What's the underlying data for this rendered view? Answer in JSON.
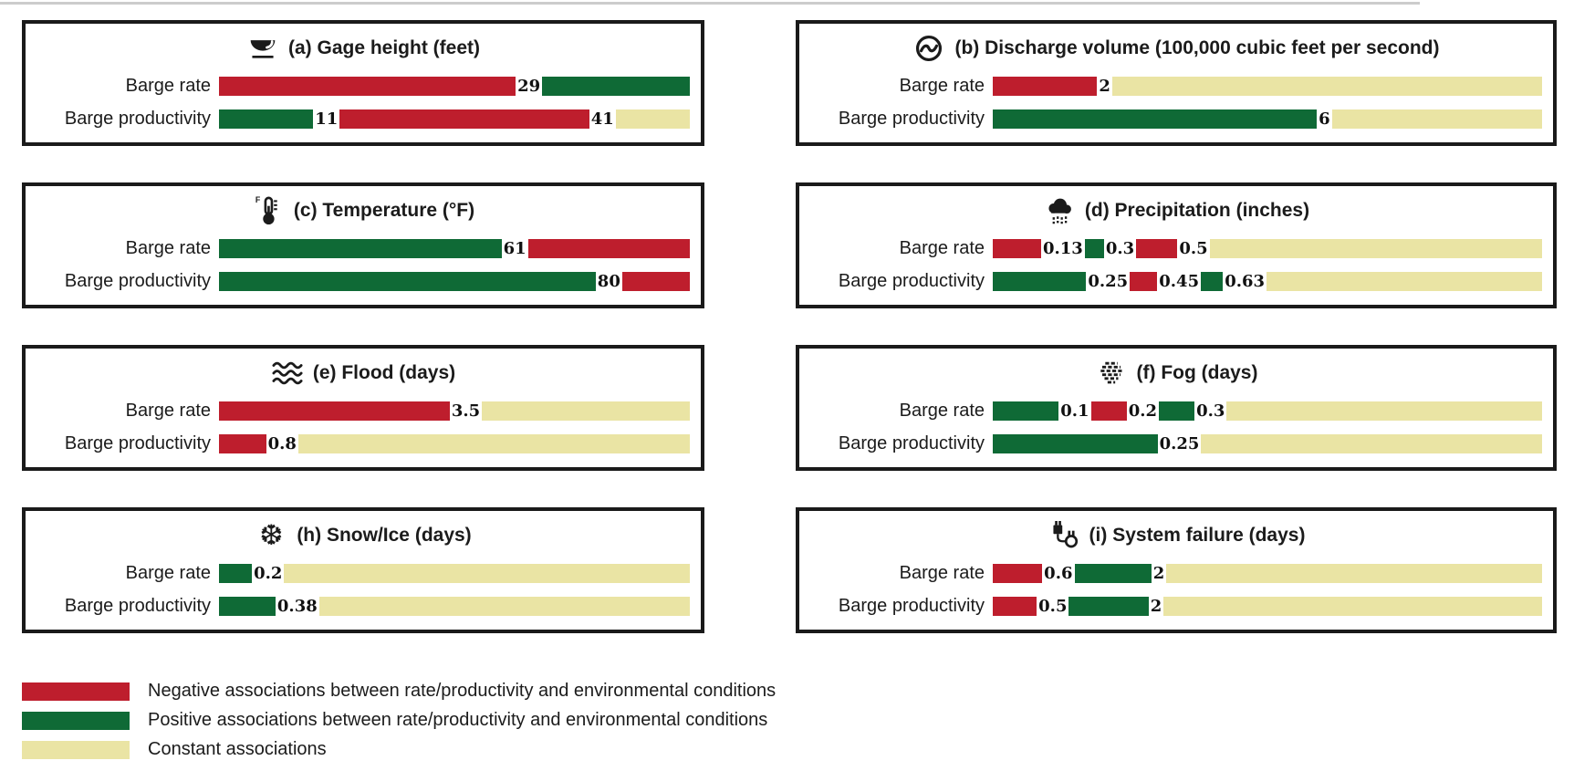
{
  "colors": {
    "negative": "#BE1E2D",
    "positive": "#0F6A36",
    "constant": "#EAE4A4"
  },
  "chart_data": {
    "type": "bar",
    "orientation": "horizontal",
    "stacked": true,
    "note": "Each bar spans the range of an environmental variable; colored segments show association type and bold numbers mark breakpoint values between segments.",
    "categories": [
      "Barge rate",
      "Barge productivity"
    ],
    "legend_position": "bottom-left",
    "panels": [
      {
        "id": "a",
        "title": "(a) Gage height (feet)",
        "icon": "water-gauge-icon",
        "rows": [
          {
            "label": "Barge rate",
            "segments": [
              {
                "association": "negative",
                "width_pct": 63,
                "value": "29"
              },
              {
                "association": "positive",
                "fill": true
              }
            ]
          },
          {
            "label": "Barge productivity",
            "segments": [
              {
                "association": "positive",
                "width_pct": 20,
                "value": "11"
              },
              {
                "association": "negative",
                "width_pct": 53,
                "value": "41"
              },
              {
                "association": "constant",
                "fill": true
              }
            ]
          }
        ]
      },
      {
        "id": "b",
        "title": "(b) Discharge volume (100,000 cubic feet per second)",
        "icon": "discharge-icon",
        "rows": [
          {
            "label": "Barge rate",
            "segments": [
              {
                "association": "negative",
                "width_pct": 19,
                "value": "2"
              },
              {
                "association": "constant",
                "fill": true
              }
            ]
          },
          {
            "label": "Barge productivity",
            "segments": [
              {
                "association": "positive",
                "width_pct": 59,
                "value": "6"
              },
              {
                "association": "constant",
                "fill": true
              }
            ]
          }
        ]
      },
      {
        "id": "c",
        "title": "(c) Temperature (°F)",
        "icon": "thermometer-icon",
        "rows": [
          {
            "label": "Barge rate",
            "segments": [
              {
                "association": "positive",
                "width_pct": 60,
                "value": "61"
              },
              {
                "association": "negative",
                "fill": true
              }
            ]
          },
          {
            "label": "Barge productivity",
            "segments": [
              {
                "association": "positive",
                "width_pct": 80,
                "value": "80"
              },
              {
                "association": "negative",
                "fill": true
              }
            ]
          }
        ]
      },
      {
        "id": "d",
        "title": "(d) Precipitation (inches)",
        "icon": "rain-cloud-icon",
        "rows": [
          {
            "label": "Barge rate",
            "segments": [
              {
                "association": "negative",
                "width_pct": 8.8,
                "value": "0.13"
              },
              {
                "association": "positive",
                "width_pct": 3.5,
                "value": "0.3"
              },
              {
                "association": "negative",
                "width_pct": 7.5,
                "value": "0.5"
              },
              {
                "association": "constant",
                "fill": true
              }
            ]
          },
          {
            "label": "Barge productivity",
            "segments": [
              {
                "association": "positive",
                "width_pct": 17,
                "value": "0.25"
              },
              {
                "association": "negative",
                "width_pct": 5,
                "value": "0.45"
              },
              {
                "association": "positive",
                "width_pct": 4,
                "value": "0.63"
              },
              {
                "association": "constant",
                "fill": true
              }
            ]
          }
        ]
      },
      {
        "id": "e",
        "title": "(e) Flood (days)",
        "icon": "waves-icon",
        "rows": [
          {
            "label": "Barge rate",
            "segments": [
              {
                "association": "negative",
                "width_pct": 49,
                "value": "3.5"
              },
              {
                "association": "constant",
                "fill": true
              }
            ]
          },
          {
            "label": "Barge productivity",
            "segments": [
              {
                "association": "negative",
                "width_pct": 10,
                "value": "0.8"
              },
              {
                "association": "constant",
                "fill": true
              }
            ]
          }
        ]
      },
      {
        "id": "f",
        "title": "(f) Fog (days)",
        "icon": "fog-icon",
        "rows": [
          {
            "label": "Barge rate",
            "segments": [
              {
                "association": "positive",
                "width_pct": 12,
                "value": "0.1"
              },
              {
                "association": "negative",
                "width_pct": 6.5,
                "value": "0.2"
              },
              {
                "association": "positive",
                "width_pct": 6.5,
                "value": "0.3"
              },
              {
                "association": "constant",
                "fill": true
              }
            ]
          },
          {
            "label": "Barge productivity",
            "segments": [
              {
                "association": "positive",
                "width_pct": 30,
                "value": "0.25"
              },
              {
                "association": "constant",
                "fill": true
              }
            ]
          }
        ]
      },
      {
        "id": "h",
        "title": "(h) Snow/Ice (days)",
        "icon": "snowflake-icon",
        "rows": [
          {
            "label": "Barge rate",
            "segments": [
              {
                "association": "positive",
                "width_pct": 7,
                "value": "0.2"
              },
              {
                "association": "constant",
                "fill": true
              }
            ]
          },
          {
            "label": "Barge productivity",
            "segments": [
              {
                "association": "positive",
                "width_pct": 12,
                "value": "0.38"
              },
              {
                "association": "constant",
                "fill": true
              }
            ]
          }
        ]
      },
      {
        "id": "i",
        "title": "(i) System failure (days)",
        "icon": "plug-icon",
        "rows": [
          {
            "label": "Barge rate",
            "segments": [
              {
                "association": "negative",
                "width_pct": 9,
                "value": "0.6"
              },
              {
                "association": "positive",
                "width_pct": 14,
                "value": "2"
              },
              {
                "association": "constant",
                "fill": true
              }
            ]
          },
          {
            "label": "Barge productivity",
            "segments": [
              {
                "association": "negative",
                "width_pct": 8,
                "value": "0.5"
              },
              {
                "association": "positive",
                "width_pct": 14.5,
                "value": "2"
              },
              {
                "association": "constant",
                "fill": true
              }
            ]
          }
        ]
      }
    ]
  },
  "legend": [
    {
      "association": "negative",
      "label": "Negative associations between rate/productivity and environmental conditions"
    },
    {
      "association": "positive",
      "label": "Positive associations between rate/productivity and environmental conditions"
    },
    {
      "association": "constant",
      "label": "Constant associations"
    }
  ]
}
